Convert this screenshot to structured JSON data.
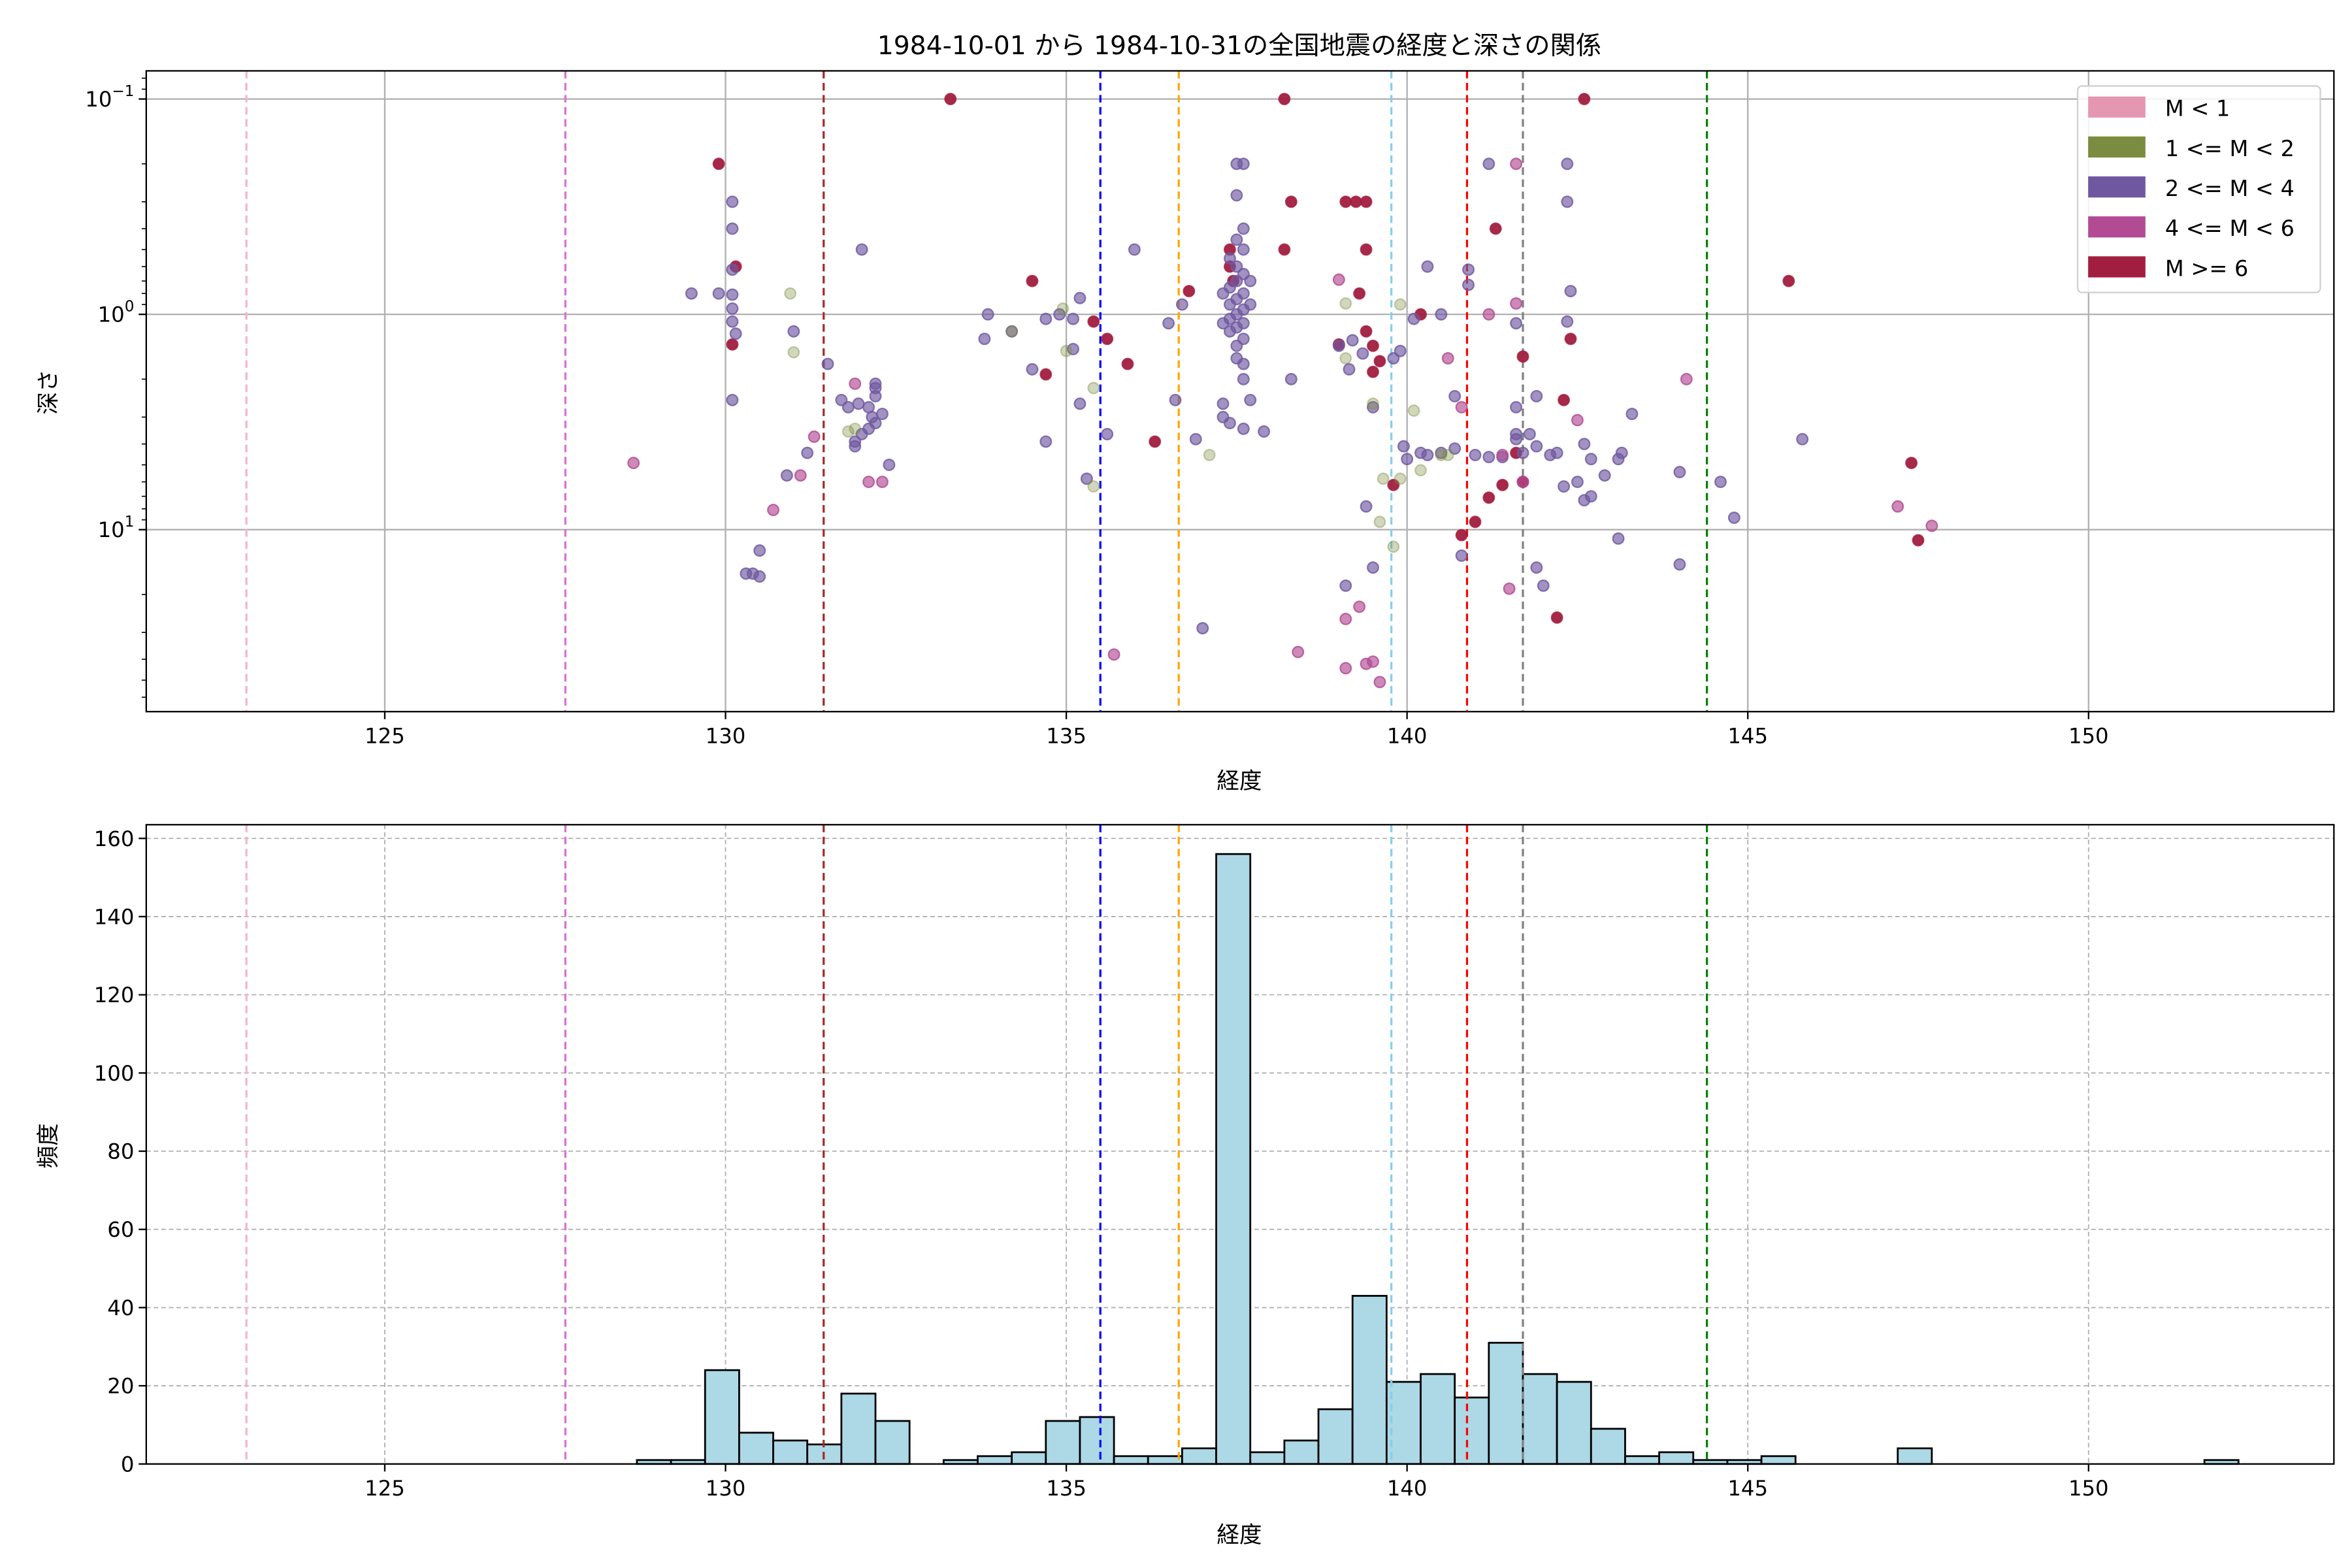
{
  "chart_data": [
    {
      "type": "scatter",
      "title": "1984-10-01 から 1984-10-31の全国地震の経度と深さの関係",
      "xlabel": "経度",
      "ylabel": "深さ",
      "xlim": [
        121.5,
        153.6
      ],
      "ylim": [
        0.074,
        70
      ],
      "yscale": "log",
      "yinverted": true,
      "xticks": [
        125,
        130,
        135,
        140,
        145,
        150
      ],
      "yticks": [
        {
          "value": 0.1,
          "base": "10",
          "exp": "−1"
        },
        {
          "value": 1,
          "base": "10",
          "exp": "0"
        },
        {
          "value": 10,
          "base": "10",
          "exp": "1"
        }
      ],
      "grid": true,
      "legend_position": "top-right",
      "classes": [
        {
          "label": "M < 1",
          "color": "#e597b2"
        },
        {
          "label": "1 <= M < 2",
          "color": "#7b8b3f"
        },
        {
          "label": "2 <= M < 4",
          "color": "#6f58a0"
        },
        {
          "label": "4 <= M < 6",
          "color": "#b24b94"
        },
        {
          "label": "M >= 6",
          "color": "#a21e40"
        }
      ],
      "points": [
        [
          129.9,
          0.2,
          4
        ],
        [
          130.15,
          0.6,
          4
        ],
        [
          130.1,
          1.38,
          4
        ],
        [
          133.3,
          0.1,
          4
        ],
        [
          134.5,
          0.7,
          4
        ],
        [
          134.7,
          1.9,
          4
        ],
        [
          135.4,
          1.08,
          4
        ],
        [
          135.6,
          1.3,
          4
        ],
        [
          135.9,
          1.7,
          4
        ],
        [
          136.3,
          3.9,
          4
        ],
        [
          136.8,
          0.78,
          4
        ],
        [
          137.4,
          0.6,
          4
        ],
        [
          137.4,
          0.5,
          4
        ],
        [
          137.45,
          0.7,
          4
        ],
        [
          138.2,
          0.1,
          4
        ],
        [
          138.3,
          0.3,
          4
        ],
        [
          138.2,
          0.5,
          4
        ],
        [
          139.0,
          1.38,
          4
        ],
        [
          139.1,
          0.3,
          4
        ],
        [
          139.25,
          0.3,
          4
        ],
        [
          139.4,
          0.3,
          4
        ],
        [
          139.4,
          0.5,
          4
        ],
        [
          139.4,
          1.2,
          4
        ],
        [
          139.5,
          1.85,
          4
        ],
        [
          139.3,
          0.8,
          4
        ],
        [
          139.5,
          1.4,
          4
        ],
        [
          139.6,
          1.65,
          4
        ],
        [
          139.8,
          6.2,
          4
        ],
        [
          140.2,
          1.0,
          4
        ],
        [
          140.8,
          10.6,
          4
        ],
        [
          141.0,
          9.2,
          4
        ],
        [
          141.2,
          7.1,
          4
        ],
        [
          141.3,
          0.4,
          4
        ],
        [
          141.4,
          6.2,
          4
        ],
        [
          141.7,
          1.57,
          4
        ],
        [
          141.6,
          4.4,
          4
        ],
        [
          141.7,
          6.0,
          4
        ],
        [
          142.2,
          25.6,
          4
        ],
        [
          142.3,
          2.5,
          4
        ],
        [
          142.4,
          1.3,
          4
        ],
        [
          142.6,
          0.1,
          4
        ],
        [
          145.6,
          0.7,
          4
        ],
        [
          147.4,
          4.9,
          4
        ],
        [
          147.5,
          11.2,
          4
        ],
        [
          130.1,
          0.3,
          2
        ],
        [
          130.1,
          0.4,
          2
        ],
        [
          130.1,
          0.62,
          2
        ],
        [
          130.1,
          0.81,
          2
        ],
        [
          130.1,
          0.94,
          2
        ],
        [
          130.1,
          1.08,
          2
        ],
        [
          130.15,
          1.23,
          2
        ],
        [
          130.1,
          2.5,
          2
        ],
        [
          129.5,
          0.8,
          2
        ],
        [
          129.9,
          0.8,
          2
        ],
        [
          130.3,
          16,
          2
        ],
        [
          130.4,
          16,
          2
        ],
        [
          130.5,
          16.5,
          2
        ],
        [
          130.5,
          12.5,
          2
        ],
        [
          130.9,
          5.6,
          2
        ],
        [
          131.0,
          1.2,
          2
        ],
        [
          131.2,
          4.4,
          2
        ],
        [
          131.5,
          1.7,
          2
        ],
        [
          132.0,
          0.5,
          2
        ],
        [
          131.7,
          2.5,
          2
        ],
        [
          131.8,
          2.7,
          2
        ],
        [
          131.9,
          4.1,
          2
        ],
        [
          132.2,
          2.2,
          2
        ],
        [
          132.2,
          2.4,
          2
        ],
        [
          132.1,
          2.7,
          2
        ],
        [
          132.2,
          3.2,
          2
        ],
        [
          132.1,
          3.4,
          2
        ],
        [
          131.9,
          3.9,
          2
        ],
        [
          132.0,
          3.6,
          2
        ],
        [
          132.4,
          5.0,
          2
        ],
        [
          132.2,
          2.1,
          2
        ],
        [
          132.3,
          2.9,
          2
        ],
        [
          132.15,
          3.0,
          2
        ],
        [
          131.95,
          2.6,
          2
        ],
        [
          133.85,
          1.0,
          2
        ],
        [
          133.8,
          1.3,
          2
        ],
        [
          134.2,
          1.2,
          2
        ],
        [
          134.7,
          1.05,
          2
        ],
        [
          134.5,
          1.8,
          2
        ],
        [
          134.7,
          3.9,
          2
        ],
        [
          134.9,
          1.0,
          2
        ],
        [
          135.1,
          1.05,
          2
        ],
        [
          135.1,
          1.45,
          2
        ],
        [
          135.2,
          0.84,
          2
        ],
        [
          135.2,
          2.6,
          2
        ],
        [
          135.3,
          5.8,
          2
        ],
        [
          135.6,
          3.6,
          2
        ],
        [
          136.0,
          0.5,
          2
        ],
        [
          136.6,
          2.5,
          2
        ],
        [
          136.9,
          3.8,
          2
        ],
        [
          137.0,
          28.7,
          2
        ],
        [
          137.3,
          2.6,
          2
        ],
        [
          137.3,
          3.0,
          2
        ],
        [
          137.4,
          3.2,
          2
        ],
        [
          137.6,
          3.4,
          2
        ],
        [
          137.7,
          2.5,
          2
        ],
        [
          137.6,
          2.0,
          2
        ],
        [
          137.9,
          3.5,
          2
        ],
        [
          137.6,
          1.7,
          2
        ],
        [
          138.3,
          2.0,
          2
        ],
        [
          139.1,
          18.2,
          2
        ],
        [
          136.7,
          0.9,
          2
        ],
        [
          136.5,
          1.1,
          2
        ],
        [
          137.5,
          0.2,
          2
        ],
        [
          137.6,
          0.2,
          2
        ],
        [
          137.5,
          0.28,
          2
        ],
        [
          137.6,
          0.4,
          2
        ],
        [
          137.5,
          0.45,
          2
        ],
        [
          137.6,
          0.5,
          2
        ],
        [
          137.4,
          0.55,
          2
        ],
        [
          137.5,
          0.6,
          2
        ],
        [
          137.6,
          0.65,
          2
        ],
        [
          137.5,
          0.7,
          2
        ],
        [
          137.4,
          0.75,
          2
        ],
        [
          137.6,
          0.8,
          2
        ],
        [
          137.5,
          0.85,
          2
        ],
        [
          137.4,
          0.9,
          2
        ],
        [
          137.6,
          0.95,
          2
        ],
        [
          137.5,
          1.0,
          2
        ],
        [
          137.4,
          1.05,
          2
        ],
        [
          137.6,
          1.1,
          2
        ],
        [
          137.5,
          1.15,
          2
        ],
        [
          137.4,
          1.2,
          2
        ],
        [
          137.6,
          1.3,
          2
        ],
        [
          137.5,
          1.4,
          2
        ],
        [
          137.5,
          1.6,
          2
        ],
        [
          137.7,
          0.7,
          2
        ],
        [
          137.7,
          0.9,
          2
        ],
        [
          137.3,
          0.8,
          2
        ],
        [
          137.3,
          1.1,
          2
        ],
        [
          139.0,
          1.4,
          2
        ],
        [
          139.15,
          1.8,
          2
        ],
        [
          139.2,
          1.32,
          2
        ],
        [
          139.35,
          1.52,
          2
        ],
        [
          139.4,
          7.8,
          2
        ],
        [
          139.5,
          2.7,
          2
        ],
        [
          139.5,
          15,
          2
        ],
        [
          139.9,
          1.48,
          2
        ],
        [
          139.8,
          1.6,
          2
        ],
        [
          140.1,
          1.05,
          2
        ],
        [
          140.3,
          0.6,
          2
        ],
        [
          140.5,
          1.0,
          2
        ],
        [
          139.95,
          4.1,
          2
        ],
        [
          140.0,
          4.7,
          2
        ],
        [
          140.2,
          4.4,
          2
        ],
        [
          140.3,
          4.5,
          2
        ],
        [
          140.5,
          4.4,
          2
        ],
        [
          140.7,
          4.2,
          2
        ],
        [
          140.7,
          2.4,
          2
        ],
        [
          140.8,
          13.2,
          2
        ],
        [
          140.9,
          0.73,
          2
        ],
        [
          140.9,
          0.62,
          2
        ],
        [
          141.2,
          0.2,
          2
        ],
        [
          141.6,
          1.1,
          2
        ],
        [
          141.6,
          2.7,
          2
        ],
        [
          141.6,
          3.8,
          2
        ],
        [
          141.6,
          3.6,
          2
        ],
        [
          141.7,
          4.4,
          2
        ],
        [
          141.8,
          3.6,
          2
        ],
        [
          141.9,
          2.4,
          2
        ],
        [
          141.9,
          4.1,
          2
        ],
        [
          141.9,
          15,
          2
        ],
        [
          142.0,
          18.2,
          2
        ],
        [
          142.2,
          4.4,
          2
        ],
        [
          142.35,
          0.2,
          2
        ],
        [
          142.35,
          0.3,
          2
        ],
        [
          142.35,
          1.08,
          2
        ],
        [
          142.4,
          0.78,
          2
        ],
        [
          142.5,
          6.0,
          2
        ],
        [
          142.6,
          7.3,
          2
        ],
        [
          142.6,
          4.0,
          2
        ],
        [
          142.7,
          4.7,
          2
        ],
        [
          142.9,
          5.6,
          2
        ],
        [
          143.1,
          4.7,
          2
        ],
        [
          143.15,
          4.4,
          2
        ],
        [
          143.1,
          11,
          2
        ],
        [
          143.3,
          2.9,
          2
        ],
        [
          144.0,
          5.4,
          2
        ],
        [
          144.0,
          14.5,
          2
        ],
        [
          144.6,
          6.0,
          2
        ],
        [
          144.8,
          8.8,
          2
        ],
        [
          145.8,
          3.8,
          2
        ],
        [
          141.4,
          4.6,
          2
        ],
        [
          141.0,
          4.5,
          2
        ],
        [
          141.2,
          4.6,
          2
        ],
        [
          142.1,
          4.5,
          2
        ],
        [
          142.3,
          6.3,
          2
        ],
        [
          142.7,
          7.0,
          2
        ],
        [
          128.65,
          4.9,
          3
        ],
        [
          130.7,
          8.1,
          3
        ],
        [
          131.1,
          5.6,
          3
        ],
        [
          131.3,
          3.7,
          3
        ],
        [
          131.9,
          2.1,
          3
        ],
        [
          132.1,
          6.0,
          3
        ],
        [
          132.3,
          6.0,
          3
        ],
        [
          135.7,
          38,
          3
        ],
        [
          138.4,
          37,
          3
        ],
        [
          139.0,
          0.69,
          3
        ],
        [
          139.1,
          26,
          3
        ],
        [
          139.1,
          44,
          3
        ],
        [
          139.3,
          22.8,
          3
        ],
        [
          139.4,
          42,
          3
        ],
        [
          139.5,
          41,
          3
        ],
        [
          139.6,
          51,
          3
        ],
        [
          140.6,
          1.6,
          3
        ],
        [
          140.8,
          2.7,
          3
        ],
        [
          141.2,
          1.0,
          3
        ],
        [
          141.4,
          4.5,
          3
        ],
        [
          141.5,
          18.8,
          3
        ],
        [
          141.6,
          0.2,
          3
        ],
        [
          141.6,
          0.89,
          3
        ],
        [
          141.7,
          6.0,
          3
        ],
        [
          142.5,
          3.1,
          3
        ],
        [
          144.1,
          2.0,
          3
        ],
        [
          147.2,
          7.8,
          3
        ],
        [
          147.7,
          9.6,
          3
        ],
        [
          130.95,
          0.8,
          1
        ],
        [
          131.0,
          1.5,
          1
        ],
        [
          131.8,
          3.5,
          1
        ],
        [
          131.9,
          3.4,
          1
        ],
        [
          134.2,
          1.2,
          1
        ],
        [
          134.95,
          0.94,
          1
        ],
        [
          135.0,
          1.48,
          1
        ],
        [
          135.4,
          2.2,
          1
        ],
        [
          135.4,
          6.3,
          1
        ],
        [
          137.1,
          4.5,
          1
        ],
        [
          139.1,
          0.89,
          1
        ],
        [
          139.1,
          1.6,
          1
        ],
        [
          139.5,
          2.6,
          1
        ],
        [
          139.6,
          9.2,
          1
        ],
        [
          139.65,
          5.8,
          1
        ],
        [
          139.9,
          0.9,
          1
        ],
        [
          140.1,
          2.8,
          1
        ],
        [
          139.8,
          12,
          1
        ],
        [
          139.9,
          5.8,
          1
        ],
        [
          140.2,
          5.3,
          1
        ],
        [
          140.5,
          4.5,
          1
        ],
        [
          140.6,
          4.5,
          1
        ]
      ],
      "reference_lines": [
        {
          "x": 122.97,
          "color": "#f4b6c6"
        },
        {
          "x": 127.65,
          "color": "#da70d6"
        },
        {
          "x": 131.44,
          "color": "#a52a2a"
        },
        {
          "x": 135.5,
          "color": "#0000ff"
        },
        {
          "x": 136.65,
          "color": "#ffa500"
        },
        {
          "x": 139.77,
          "color": "#87ceeb"
        },
        {
          "x": 140.88,
          "color": "#ff0000"
        },
        {
          "x": 141.7,
          "color": "#808080"
        },
        {
          "x": 144.4,
          "color": "#008000"
        }
      ]
    },
    {
      "type": "bar",
      "subtype": "histogram",
      "xlabel": "経度",
      "ylabel": "頻度",
      "xlim": [
        121.5,
        153.6
      ],
      "ylim": [
        0,
        163.5
      ],
      "xticks": [
        125,
        130,
        135,
        140,
        145,
        150
      ],
      "yticks": [
        0,
        20,
        40,
        60,
        80,
        100,
        120,
        140,
        160
      ],
      "grid": true,
      "bar_color": "#add8e6",
      "bin_start": 128.7,
      "bin_width": 0.5,
      "counts": [
        1,
        1,
        24,
        8,
        6,
        5,
        18,
        11,
        0,
        1,
        2,
        3,
        11,
        12,
        2,
        2,
        4,
        156,
        3,
        6,
        14,
        43,
        21,
        23,
        17,
        31,
        23,
        21,
        9,
        2,
        3,
        1,
        1,
        2,
        0,
        0,
        0,
        4,
        0,
        0,
        0,
        0,
        0,
        0,
        0,
        0,
        1
      ]
    }
  ]
}
